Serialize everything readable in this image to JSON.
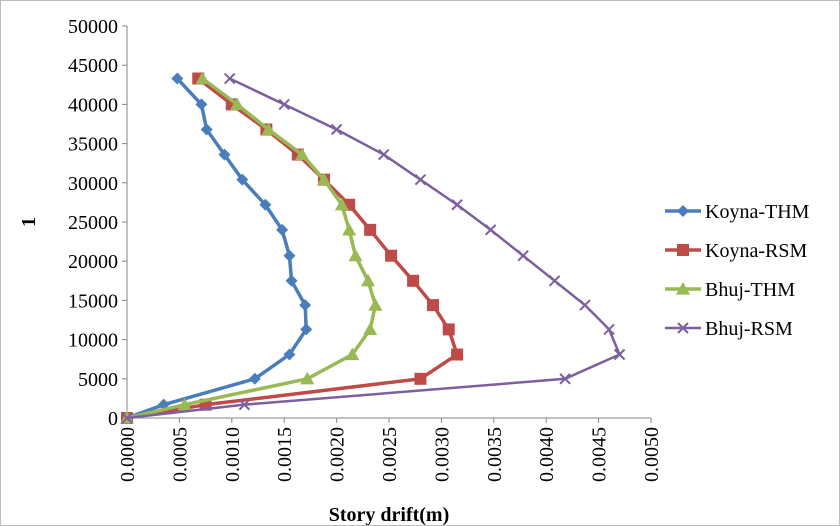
{
  "chart_data": {
    "type": "line",
    "title": "",
    "xlabel": "Story drift(m)",
    "ylabel": "1",
    "xlim": [
      0,
      0.005
    ],
    "ylim": [
      0,
      50000
    ],
    "x_ticks": [
      "0.0000",
      "0.0005",
      "0.0010",
      "0.0015",
      "0.0020",
      "0.0025",
      "0.0030",
      "0.0035",
      "0.0040",
      "0.0045",
      "0.0050"
    ],
    "y_ticks": [
      "0",
      "5000",
      "10000",
      "15000",
      "20000",
      "25000",
      "30000",
      "35000",
      "40000",
      "45000",
      "50000"
    ],
    "grid": false,
    "legend_position": "right",
    "series": [
      {
        "name": "Koyna-THM",
        "color": "#4a7ebb",
        "marker": "diamond",
        "x": [
          0.0,
          0.00035,
          0.00122,
          0.00155,
          0.00171,
          0.0017,
          0.00157,
          0.00155,
          0.00148,
          0.00132,
          0.0011,
          0.00093,
          0.00076,
          0.00071,
          0.00048
        ],
        "y": [
          0,
          1700,
          5000,
          8100,
          11300,
          14400,
          17500,
          20700,
          24000,
          27200,
          30400,
          33600,
          36800,
          40000,
          43300
        ]
      },
      {
        "name": "Koyna-RSM",
        "color": "#be4b48",
        "marker": "square",
        "x": [
          0.0,
          0.00075,
          0.0028,
          0.00315,
          0.00307,
          0.00292,
          0.00273,
          0.00252,
          0.00232,
          0.00212,
          0.00188,
          0.00163,
          0.00133,
          0.001,
          0.00068
        ],
        "y": [
          0,
          1700,
          5000,
          8100,
          11300,
          14400,
          17500,
          20700,
          24000,
          27200,
          30400,
          33600,
          36800,
          40000,
          43300
        ]
      },
      {
        "name": "Bhuj-THM",
        "color": "#98b954",
        "marker": "triangle",
        "x": [
          0.0,
          0.00055,
          0.00172,
          0.00215,
          0.00232,
          0.00237,
          0.0023,
          0.00218,
          0.00212,
          0.00205,
          0.00188,
          0.00167,
          0.00135,
          0.00105,
          0.00072
        ],
        "y": [
          0,
          1700,
          5000,
          8100,
          11300,
          14400,
          17500,
          20700,
          24000,
          27200,
          30400,
          33600,
          36800,
          40000,
          43300
        ]
      },
      {
        "name": "Bhuj-RSM",
        "color": "#7d5fa0",
        "marker": "x",
        "x": [
          0.0,
          0.00112,
          0.00418,
          0.0047,
          0.0046,
          0.00437,
          0.00408,
          0.00378,
          0.00347,
          0.00315,
          0.0028,
          0.00245,
          0.002,
          0.0015,
          0.00098
        ],
        "y": [
          0,
          1700,
          5000,
          8100,
          11300,
          14400,
          17500,
          20700,
          24000,
          27200,
          30400,
          33600,
          36800,
          40000,
          43300
        ]
      }
    ]
  }
}
